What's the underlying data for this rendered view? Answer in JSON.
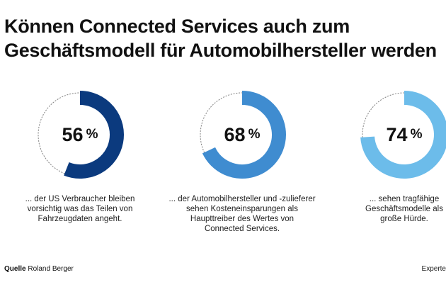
{
  "title_lines": [
    "Können Connected Services auch zum",
    "Geschäftsmodell für Automobilhersteller werden"
  ],
  "chart_data": {
    "type": "donut",
    "items": [
      {
        "value": 56,
        "unit": "%",
        "color": "#0b3a7e",
        "caption": [
          "... der US Verbraucher bleiben",
          "vorsichtig was das Teilen von",
          "Fahrzeugdaten angeht."
        ]
      },
      {
        "value": 68,
        "unit": "%",
        "color": "#3f8cd0",
        "caption": [
          "... der Automobilhersteller und -zulieferer",
          "sehen Kosteneinsparungen als",
          "Haupttreiber des Wertes von",
          "Connected Services."
        ]
      },
      {
        "value": 74,
        "unit": "%",
        "color": "#6cbcea",
        "caption": [
          "... sehen tragfähige",
          "Geschäftsmodelle als",
          "große Hürde."
        ]
      }
    ]
  },
  "source": {
    "label": "Quelle",
    "name": "Roland Berger"
  },
  "right_note": "Experte"
}
